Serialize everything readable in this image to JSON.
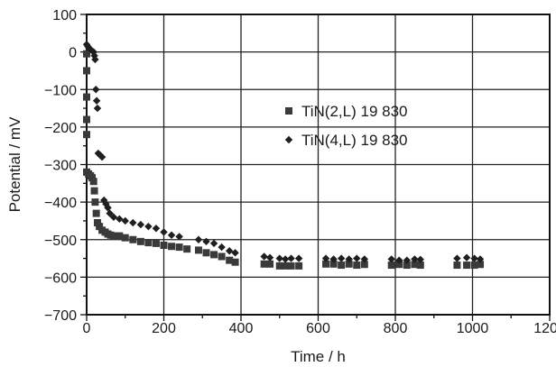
{
  "chart_data": {
    "type": "scatter",
    "xlabel": "Time / h",
    "ylabel": "Potential / mV",
    "xlim": [
      0,
      1200
    ],
    "ylim": [
      -700,
      100
    ],
    "xticks": [
      0,
      200,
      400,
      600,
      800,
      1000,
      1200
    ],
    "yticks": [
      100,
      0,
      -100,
      -200,
      -300,
      -400,
      -500,
      -600,
      -700
    ],
    "x_minor_step": 100,
    "y_minor_step": 50,
    "grid": true,
    "legend_position": "upper-right inside plot",
    "series": [
      {
        "name": "TiN(2,L) 19 830",
        "marker": "square",
        "color": "#3a3a3a",
        "points": [
          [
            0,
            -5
          ],
          [
            0,
            -50
          ],
          [
            0,
            -120
          ],
          [
            0,
            -180
          ],
          [
            0,
            -220
          ],
          [
            0,
            -320
          ],
          [
            5,
            -325
          ],
          [
            10,
            -330
          ],
          [
            14,
            -335
          ],
          [
            18,
            -345
          ],
          [
            20,
            -370
          ],
          [
            22,
            -400
          ],
          [
            25,
            -430
          ],
          [
            28,
            -455
          ],
          [
            33,
            -465
          ],
          [
            40,
            -475
          ],
          [
            48,
            -480
          ],
          [
            55,
            -485
          ],
          [
            62,
            -488
          ],
          [
            70,
            -490
          ],
          [
            85,
            -490
          ],
          [
            100,
            -495
          ],
          [
            120,
            -500
          ],
          [
            140,
            -505
          ],
          [
            160,
            -508
          ],
          [
            180,
            -510
          ],
          [
            200,
            -515
          ],
          [
            220,
            -518
          ],
          [
            240,
            -520
          ],
          [
            260,
            -525
          ],
          [
            290,
            -528
          ],
          [
            310,
            -535
          ],
          [
            330,
            -540
          ],
          [
            350,
            -545
          ],
          [
            370,
            -555
          ],
          [
            385,
            -560
          ],
          [
            460,
            -565
          ],
          [
            475,
            -565
          ],
          [
            500,
            -570
          ],
          [
            515,
            -570
          ],
          [
            530,
            -570
          ],
          [
            550,
            -570
          ],
          [
            620,
            -565
          ],
          [
            640,
            -565
          ],
          [
            660,
            -568
          ],
          [
            680,
            -565
          ],
          [
            700,
            -568
          ],
          [
            720,
            -566
          ],
          [
            790,
            -568
          ],
          [
            810,
            -566
          ],
          [
            830,
            -568
          ],
          [
            850,
            -566
          ],
          [
            865,
            -568
          ],
          [
            960,
            -568
          ],
          [
            985,
            -568
          ],
          [
            1005,
            -568
          ],
          [
            1020,
            -566
          ]
        ]
      },
      {
        "name": "TiN(4,L) 19 830",
        "marker": "diamond",
        "color": "#1f1f1f",
        "points": [
          [
            0,
            20
          ],
          [
            3,
            15
          ],
          [
            6,
            10
          ],
          [
            12,
            5
          ],
          [
            18,
            0
          ],
          [
            20,
            -10
          ],
          [
            22,
            -20
          ],
          [
            24,
            -100
          ],
          [
            26,
            -130
          ],
          [
            28,
            -150
          ],
          [
            30,
            -270
          ],
          [
            35,
            -275
          ],
          [
            40,
            -280
          ],
          [
            45,
            -395
          ],
          [
            50,
            -405
          ],
          [
            55,
            -415
          ],
          [
            60,
            -430
          ],
          [
            70,
            -440
          ],
          [
            85,
            -445
          ],
          [
            100,
            -450
          ],
          [
            120,
            -455
          ],
          [
            140,
            -460
          ],
          [
            160,
            -465
          ],
          [
            180,
            -470
          ],
          [
            200,
            -480
          ],
          [
            220,
            -488
          ],
          [
            240,
            -492
          ],
          [
            290,
            -500
          ],
          [
            310,
            -505
          ],
          [
            330,
            -510
          ],
          [
            350,
            -520
          ],
          [
            370,
            -530
          ],
          [
            385,
            -535
          ],
          [
            460,
            -545
          ],
          [
            475,
            -548
          ],
          [
            500,
            -550
          ],
          [
            515,
            -552
          ],
          [
            530,
            -550
          ],
          [
            550,
            -550
          ],
          [
            620,
            -550
          ],
          [
            640,
            -552
          ],
          [
            660,
            -550
          ],
          [
            680,
            -552
          ],
          [
            700,
            -550
          ],
          [
            720,
            -552
          ],
          [
            790,
            -552
          ],
          [
            810,
            -555
          ],
          [
            830,
            -555
          ],
          [
            850,
            -552
          ],
          [
            865,
            -553
          ],
          [
            960,
            -550
          ],
          [
            985,
            -548
          ],
          [
            1005,
            -550
          ],
          [
            1020,
            -552
          ]
        ]
      }
    ]
  }
}
